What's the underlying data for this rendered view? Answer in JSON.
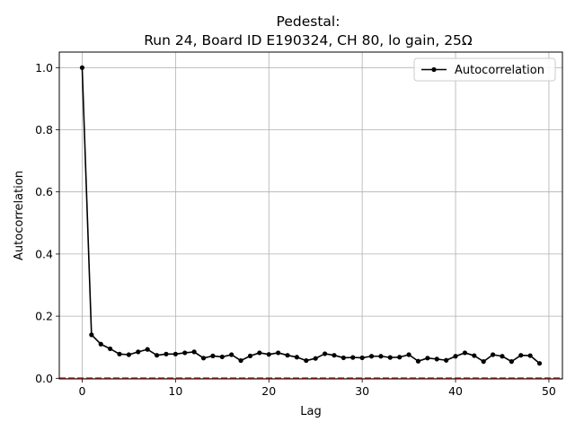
{
  "chart_data": {
    "type": "line",
    "title_line1": "Pedestal:",
    "title_line2": "Run 24, Board ID E190324, CH 80, lo gain, 25Ω",
    "xlabel": "Lag",
    "ylabel": "Autocorrelation",
    "xlim": [
      -2.45,
      51.45
    ],
    "ylim": [
      -0.002,
      1.05
    ],
    "xticks": [
      0,
      10,
      20,
      30,
      40,
      50
    ],
    "yticks": [
      0.0,
      0.2,
      0.4,
      0.6,
      0.8,
      1.0
    ],
    "xtick_labels": [
      "0",
      "10",
      "20",
      "30",
      "40",
      "50"
    ],
    "ytick_labels": [
      "0.0",
      "0.2",
      "0.4",
      "0.6",
      "0.8",
      "1.0"
    ],
    "grid": true,
    "legend_position": "top-right",
    "reference_line": {
      "y": 0,
      "color": "#d62728",
      "style": "dashed"
    },
    "series": [
      {
        "name": "Autocorrelation",
        "color": "#000000",
        "marker": "circle",
        "x": [
          0,
          1,
          2,
          3,
          4,
          5,
          6,
          7,
          8,
          9,
          10,
          11,
          12,
          13,
          14,
          15,
          16,
          17,
          18,
          19,
          20,
          21,
          22,
          23,
          24,
          25,
          26,
          27,
          28,
          29,
          30,
          31,
          32,
          33,
          34,
          35,
          36,
          37,
          38,
          39,
          40,
          41,
          42,
          43,
          44,
          45,
          46,
          47,
          48,
          49
        ],
        "y": [
          1.0,
          0.14,
          0.11,
          0.095,
          0.078,
          0.076,
          0.085,
          0.093,
          0.074,
          0.078,
          0.078,
          0.082,
          0.085,
          0.065,
          0.072,
          0.069,
          0.076,
          0.057,
          0.072,
          0.082,
          0.077,
          0.082,
          0.074,
          0.068,
          0.057,
          0.064,
          0.079,
          0.074,
          0.066,
          0.067,
          0.066,
          0.071,
          0.071,
          0.067,
          0.068,
          0.076,
          0.055,
          0.065,
          0.062,
          0.058,
          0.071,
          0.082,
          0.073,
          0.054,
          0.076,
          0.071,
          0.054,
          0.074,
          0.073,
          0.048
        ]
      }
    ]
  }
}
